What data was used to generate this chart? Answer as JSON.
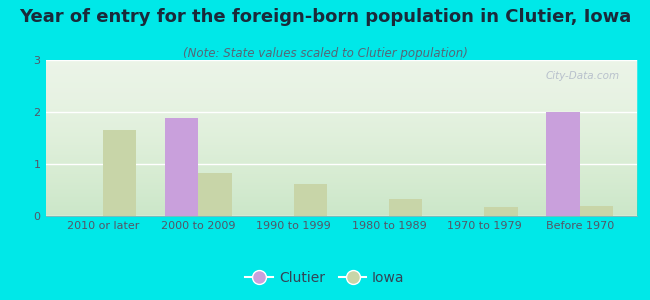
{
  "title": "Year of entry for the foreign-born population in Clutier, Iowa",
  "subtitle": "(Note: State values scaled to Clutier population)",
  "categories": [
    "2010 or later",
    "2000 to 2009",
    "1990 to 1999",
    "1980 to 1989",
    "1970 to 1979",
    "Before 1970"
  ],
  "clutier_values": [
    0,
    1.88,
    0,
    0,
    0,
    2.0
  ],
  "iowa_values": [
    1.65,
    0.82,
    0.62,
    0.32,
    0.17,
    0.19
  ],
  "clutier_color": "#c9a0dc",
  "iowa_color": "#c8d5a8",
  "background_color": "#00e8e8",
  "plot_bg_color": "#e8f2e4",
  "ylim": [
    0,
    3
  ],
  "yticks": [
    0,
    1,
    2,
    3
  ],
  "bar_width": 0.35,
  "title_fontsize": 13,
  "subtitle_fontsize": 8.5,
  "axis_fontsize": 8,
  "legend_fontsize": 10,
  "watermark_text": "City-Data.com"
}
